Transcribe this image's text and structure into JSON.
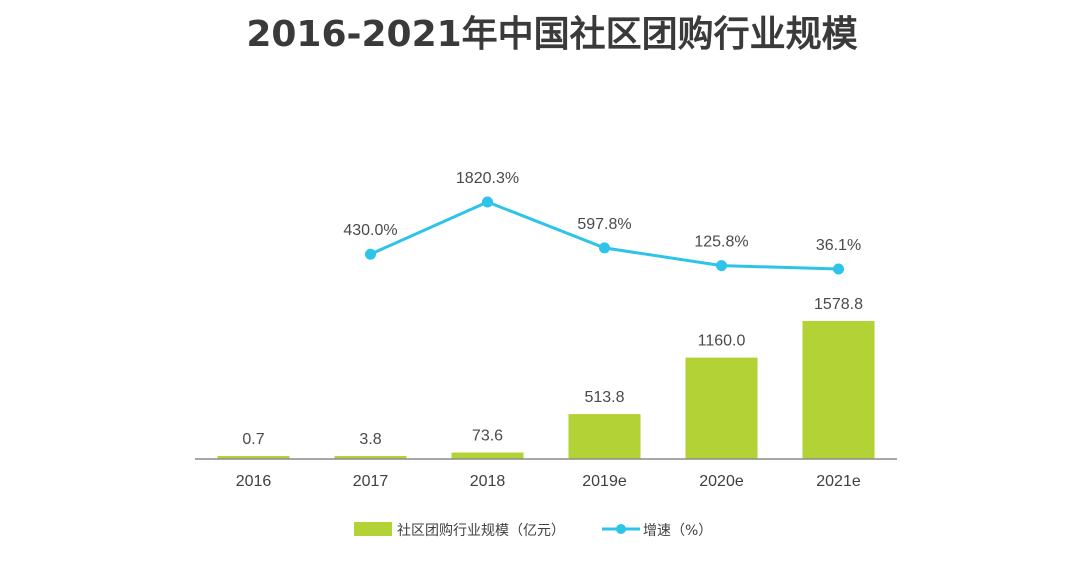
{
  "chart_data": {
    "type": "bar",
    "title": "2016-2021年中国社区团购行业规模",
    "categories": [
      "2016",
      "2017",
      "2018",
      "2019e",
      "2020e",
      "2021e"
    ],
    "series": [
      {
        "name": "社区团购行业规模（亿元）",
        "type": "bar",
        "values": [
          0.7,
          3.8,
          73.6,
          513.8,
          1160.0,
          1578.8
        ],
        "labels": [
          "0.7",
          "3.8",
          "73.6",
          "513.8",
          "1160.0",
          "1578.8"
        ],
        "color": "#b2d235"
      },
      {
        "name": "增速（%）",
        "type": "line",
        "values": [
          null,
          430.0,
          1820.3,
          597.8,
          125.8,
          36.1
        ],
        "labels": [
          "",
          "430.0%",
          "1820.3%",
          "597.8%",
          "125.8%",
          "36.1%"
        ],
        "color": "#2ec3e8"
      }
    ],
    "xlabel": "",
    "ylabel": "",
    "grid": false,
    "legend_position": "bottom"
  }
}
